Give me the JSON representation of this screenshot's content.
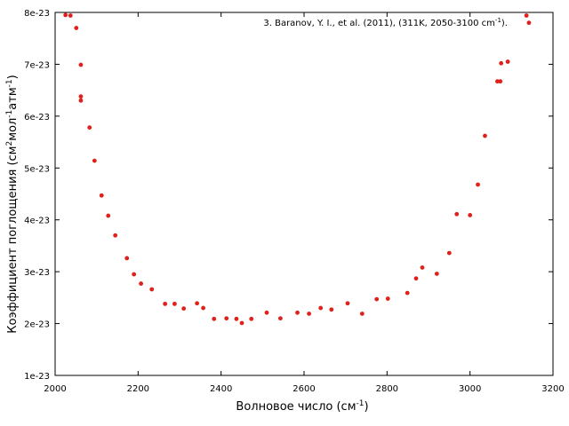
{
  "chart_data": {
    "type": "scatter",
    "title": "",
    "xlabel": "Волновое число (см",
    "xlabel_sup": "-1",
    "xlabel_end": ")",
    "ylabel": "Коэффициент поглощения (см",
    "ylabel_sup1": "2",
    "ylabel_mid1": "мол",
    "ylabel_sup2": "-1",
    "ylabel_mid2": "атм",
    "ylabel_sup3": "-1",
    "ylabel_end": ")",
    "xlim": [
      2000,
      3200
    ],
    "ylim": [
      1e-23,
      8e-23
    ],
    "xticks": [
      2000,
      2200,
      2400,
      2600,
      2800,
      3000,
      3200
    ],
    "xtick_labels": [
      "2000",
      "2200",
      "2400",
      "2600",
      "2800",
      "3000",
      "3200"
    ],
    "yticks": [
      1e-23,
      2e-23,
      3e-23,
      4e-23,
      5e-23,
      6e-23,
      7e-23,
      8e-23
    ],
    "ytick_labels": [
      "1e-23",
      "2e-23",
      "3e-23",
      "4e-23",
      "5e-23",
      "6e-23",
      "7e-23",
      "8e-23"
    ],
    "grid": false,
    "legend_position": "top-right",
    "series": [
      {
        "name": "3. Baranov, Y. I., et al. (2011), (311K, 2050-3100 cm",
        "name_sup": "-1",
        "name_end": ").",
        "color": "#e0201b",
        "x": [
          2025,
          2037,
          2051,
          2062,
          2062,
          2062,
          2083,
          2095,
          2112,
          2128,
          2145,
          2173,
          2190,
          2207,
          2233,
          2265,
          2288,
          2310,
          2342,
          2357,
          2383,
          2413,
          2437,
          2450,
          2473,
          2510,
          2543,
          2584,
          2612,
          2640,
          2666,
          2705,
          2740,
          2775,
          2802,
          2849,
          2870,
          2885,
          2920,
          2950,
          2968,
          3000,
          3019,
          3036,
          3066,
          3073,
          3075,
          3091,
          3136,
          3142
        ],
        "y": [
          7.95e-23,
          7.94e-23,
          7.7e-23,
          6.99e-23,
          6.38e-23,
          6.3e-23,
          5.78e-23,
          5.14e-23,
          4.47e-23,
          4.08e-23,
          3.7e-23,
          3.26e-23,
          2.95e-23,
          2.77e-23,
          2.66e-23,
          2.38e-23,
          2.38e-23,
          2.29e-23,
          2.39e-23,
          2.3e-23,
          2.09e-23,
          2.1e-23,
          2.09e-23,
          2.01e-23,
          2.09e-23,
          2.21e-23,
          2.1e-23,
          2.21e-23,
          2.19e-23,
          2.3e-23,
          2.27e-23,
          2.39e-23,
          2.19e-23,
          2.47e-23,
          2.48e-23,
          2.59e-23,
          2.87e-23,
          3.08e-23,
          2.96e-23,
          3.36e-23,
          4.11e-23,
          4.09e-23,
          4.68e-23,
          5.62e-23,
          6.67e-23,
          6.67e-23,
          7.02e-23,
          7.05e-23,
          7.94e-23,
          7.8e-23
        ]
      }
    ]
  }
}
